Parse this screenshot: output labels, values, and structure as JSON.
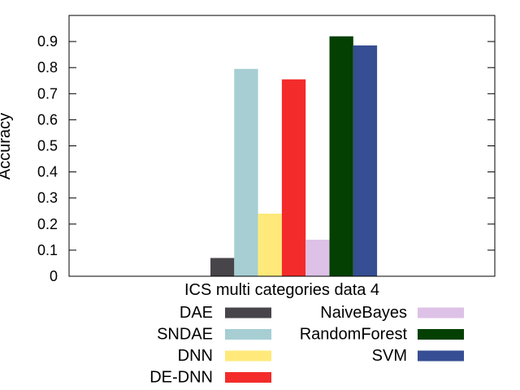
{
  "chart_data": {
    "type": "bar",
    "ylabel": "Accuracy",
    "categories": [
      "ICS multi categories data 4"
    ],
    "ylim": [
      0,
      1.0
    ],
    "yticks": [
      0,
      0.1,
      0.2,
      0.3,
      0.4,
      0.5,
      0.6,
      0.7,
      0.8,
      0.9
    ],
    "grid": false,
    "legend_position": "bottom",
    "series": [
      {
        "name": "DAE",
        "values": [
          0.07
        ],
        "color": "#48454a"
      },
      {
        "name": "SNDAE",
        "values": [
          0.795
        ],
        "color": "#a6ced3"
      },
      {
        "name": "DNN",
        "values": [
          0.24
        ],
        "color": "#ffe97a"
      },
      {
        "name": "DE-DNN",
        "values": [
          0.755
        ],
        "color": "#f42b2b"
      },
      {
        "name": "NaiveBayes",
        "values": [
          0.14
        ],
        "color": "#ddc1e6"
      },
      {
        "name": "RandomForest",
        "values": [
          0.92
        ],
        "color": "#034002"
      },
      {
        "name": "SVM",
        "values": [
          0.885
        ],
        "color": "#364e93"
      }
    ]
  }
}
